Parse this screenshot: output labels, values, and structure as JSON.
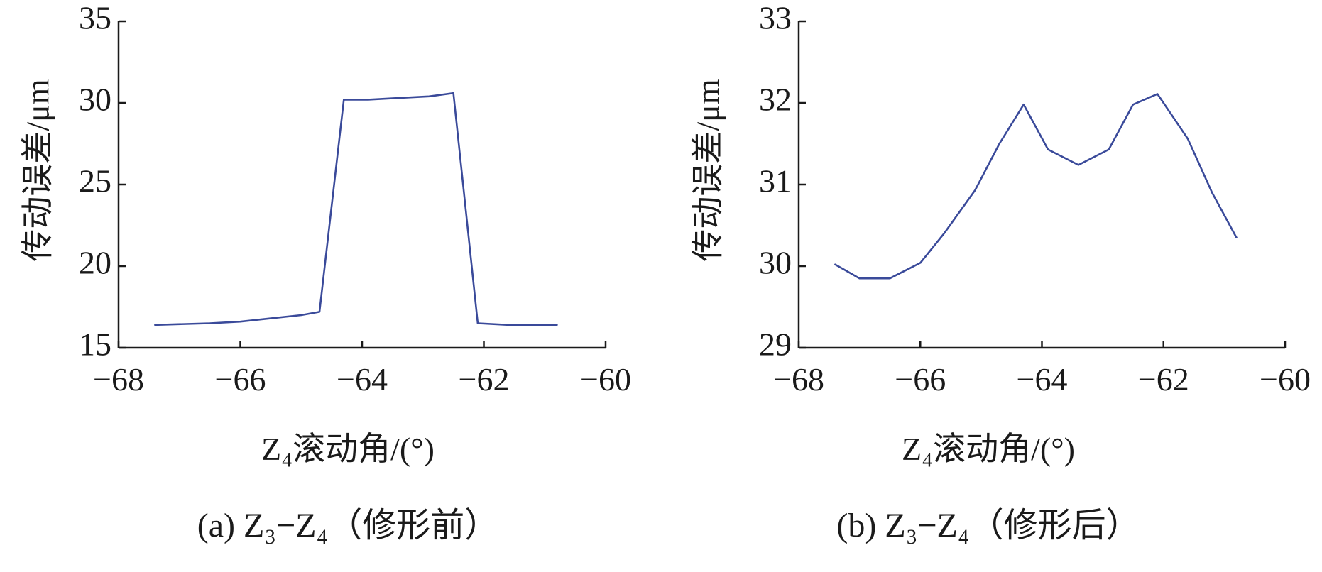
{
  "chart_data": [
    {
      "type": "line",
      "xlabel": "Z₄滚动角/(°)",
      "ylabel": "传动误差/μm",
      "xlim": [
        -68,
        -60
      ],
      "ylim": [
        15,
        35
      ],
      "xticks": [
        -68,
        -66,
        -64,
        -62,
        -60
      ],
      "yticks": [
        15,
        20,
        25,
        30,
        35
      ],
      "grid": false,
      "caption": "(a)  Z₃−Z₄（修形前）",
      "color": "#3a4a9a",
      "series": [
        {
          "x": [
            -67.4,
            -66.5,
            -66.0,
            -65.5,
            -65.0,
            -64.7,
            -64.3,
            -63.9,
            -63.4,
            -62.9,
            -62.5,
            -62.1,
            -61.6,
            -60.8
          ],
          "values": [
            16.4,
            16.5,
            16.6,
            16.8,
            17.0,
            17.2,
            30.2,
            30.2,
            30.3,
            30.4,
            30.6,
            16.5,
            16.4,
            16.4
          ]
        }
      ]
    },
    {
      "type": "line",
      "xlabel": "Z₄滚动角/(°)",
      "ylabel": "传动误差/μm",
      "xlim": [
        -68,
        -60
      ],
      "ylim": [
        29,
        33
      ],
      "xticks": [
        -68,
        -66,
        -64,
        -62,
        -60
      ],
      "yticks": [
        29,
        30,
        31,
        32,
        33
      ],
      "grid": false,
      "caption": "(b)  Z₃−Z₄（修形后）",
      "color": "#3a4a9a",
      "series": [
        {
          "x": [
            -67.4,
            -67.0,
            -66.5,
            -66.0,
            -65.6,
            -65.1,
            -64.7,
            -64.3,
            -63.9,
            -63.4,
            -62.9,
            -62.5,
            -62.1,
            -61.6,
            -61.2,
            -60.8
          ],
          "values": [
            30.02,
            29.85,
            29.85,
            30.04,
            30.41,
            30.93,
            31.5,
            31.98,
            31.43,
            31.24,
            31.43,
            31.98,
            32.11,
            31.56,
            30.9,
            30.35
          ]
        }
      ]
    }
  ]
}
